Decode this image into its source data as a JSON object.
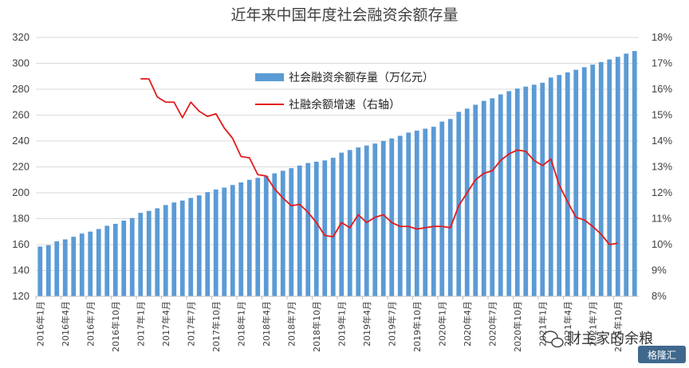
{
  "chart_data": {
    "type": "bar+line",
    "title": "近年来中国年度社会融资余额存量",
    "colors": {
      "bars": "#5b9bd5",
      "line": "#e31a1c",
      "grid": "#d9d9d9"
    },
    "legend": {
      "placement": "top-center",
      "entries": [
        "社会融资余额存量（万亿元）",
        "社融余额增速（右轴）"
      ]
    },
    "y_left": {
      "min": 120,
      "max": 320,
      "step": 20,
      "ticks": [
        "120",
        "140",
        "160",
        "180",
        "200",
        "220",
        "240",
        "260",
        "280",
        "300",
        "320"
      ]
    },
    "y_right": {
      "min": 8,
      "max": 18,
      "step": 1,
      "ticks": [
        "8%",
        "9%",
        "10%",
        "11%",
        "12%",
        "13%",
        "14%",
        "15%",
        "16%",
        "17%",
        "18%"
      ]
    },
    "x_labels": [
      "2016年1月",
      "2016年4月",
      "2016年7月",
      "2016年10月",
      "2017年1月",
      "2017年4月",
      "2017年7月",
      "2017年10月",
      "2018年1月",
      "2018年4月",
      "2018年7月",
      "2018年10月",
      "2019年1月",
      "2019年4月",
      "2019年7月",
      "2019年10月",
      "2020年1月",
      "2020年4月",
      "2020年7月",
      "2020年10月",
      "2021年1月",
      "2021年4月",
      "2021年7月",
      "2021年10月"
    ],
    "grid": true,
    "series": [
      {
        "name": "社会融资余额存量（万亿元）",
        "type": "bar",
        "axis": "left",
        "values": [
          158.5,
          159.5,
          162.5,
          164,
          166,
          168.5,
          170,
          172,
          174.5,
          176,
          178.5,
          180.5,
          184.5,
          186,
          188,
          190.5,
          192.5,
          194,
          196,
          198,
          200.5,
          202.5,
          204,
          206,
          208,
          210,
          211.5,
          213,
          215,
          217,
          219,
          221,
          223,
          224,
          225,
          227,
          231,
          233,
          235,
          236.5,
          238,
          240,
          242,
          244,
          246.5,
          248,
          249.5,
          251,
          255,
          257,
          262.5,
          265,
          268,
          271,
          273,
          276,
          278.5,
          280.5,
          282,
          283.5,
          285,
          289,
          291,
          293,
          295,
          297,
          299,
          301,
          303,
          305,
          307.5,
          309.5
        ]
      },
      {
        "name": "社融余额增速（右轴）",
        "type": "line",
        "axis": "right",
        "start_index": 12,
        "values": [
          16.4,
          16.4,
          15.7,
          15.5,
          15.5,
          14.9,
          15.5,
          15.15,
          14.95,
          15.05,
          14.5,
          14.1,
          13.4,
          13.35,
          12.7,
          12.65,
          12.15,
          11.8,
          11.5,
          11.55,
          11.25,
          10.85,
          10.35,
          10.3,
          10.85,
          10.65,
          11.15,
          10.85,
          11.05,
          11.15,
          10.85,
          10.7,
          10.7,
          10.6,
          10.65,
          10.7,
          10.7,
          10.65,
          11.5,
          12.0,
          12.5,
          12.75,
          12.85,
          13.25,
          13.5,
          13.65,
          13.6,
          13.25,
          13.05,
          13.3,
          12.3,
          11.65,
          11.05,
          10.95,
          10.7,
          10.4,
          10.0,
          10.05
        ]
      }
    ]
  },
  "watermark": {
    "line1": "财主家的余粮",
    "line2": "格隆汇"
  }
}
